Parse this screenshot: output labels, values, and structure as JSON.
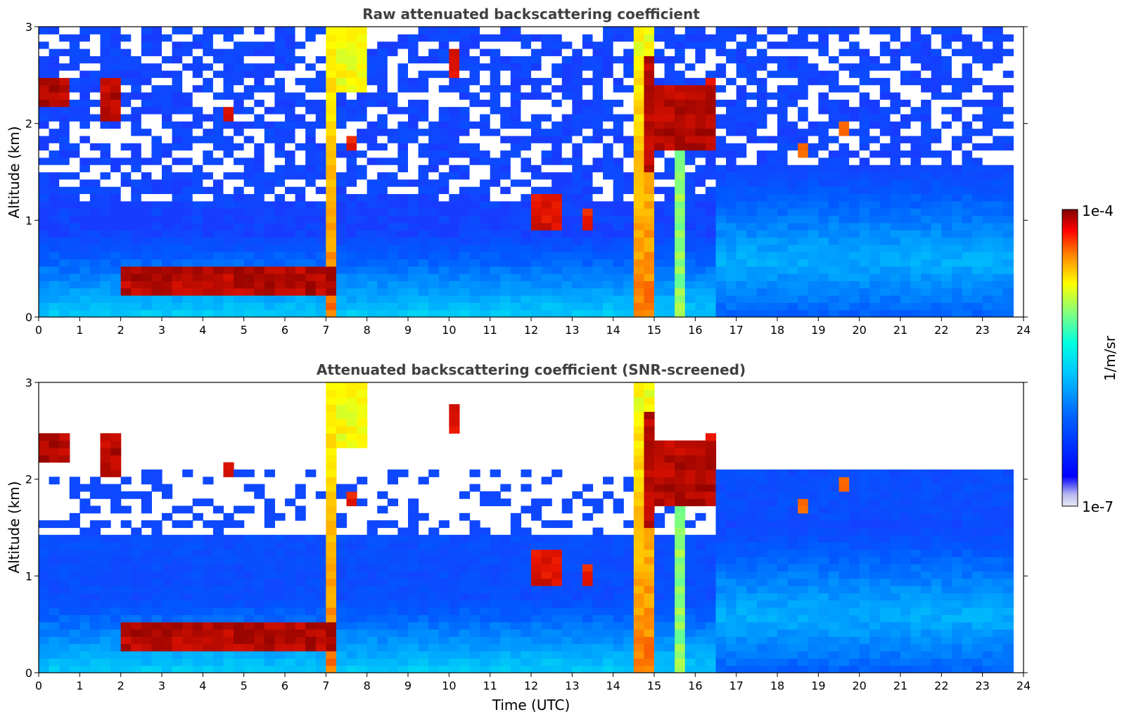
{
  "chart_data": [
    {
      "type": "heatmap",
      "title": "Raw attenuated backscattering coefficient",
      "xlabel": "",
      "ylabel": "Altitude (km)",
      "xlim": [
        0,
        24
      ],
      "ylim": [
        0,
        3
      ],
      "xticks": [
        "0",
        "1",
        "2",
        "3",
        "4",
        "5",
        "6",
        "7",
        "8",
        "9",
        "10",
        "11",
        "12",
        "13",
        "14",
        "15",
        "16",
        "17",
        "18",
        "19",
        "20",
        "21",
        "22",
        "23",
        "24"
      ],
      "yticks": [
        "0",
        "1",
        "2",
        "3"
      ],
      "grid": false,
      "screened": false
    },
    {
      "type": "heatmap",
      "title": "Attenuated backscattering coefficient (SNR-screened)",
      "xlabel": "Time (UTC)",
      "ylabel": "Altitude (km)",
      "xlim": [
        0,
        24
      ],
      "ylim": [
        0,
        3
      ],
      "xticks": [
        "0",
        "1",
        "2",
        "3",
        "4",
        "5",
        "6",
        "7",
        "8",
        "9",
        "10",
        "11",
        "12",
        "13",
        "14",
        "15",
        "16",
        "17",
        "18",
        "19",
        "20",
        "21",
        "22",
        "23",
        "24"
      ],
      "yticks": [
        "0",
        "1",
        "2",
        "3"
      ],
      "grid": false,
      "screened": true
    }
  ],
  "colorbar": {
    "label": "1/m/sr",
    "max_label": "1e-4",
    "min_label": "1e-7",
    "scale": "log",
    "range": [
      1e-07,
      0.0001
    ],
    "colormap": "jet",
    "colors": [
      "#e8e8f4",
      "#0000ff",
      "#00a0ff",
      "#00ffff",
      "#ffff00",
      "#ff8000",
      "#ff0000",
      "#800000"
    ]
  }
}
